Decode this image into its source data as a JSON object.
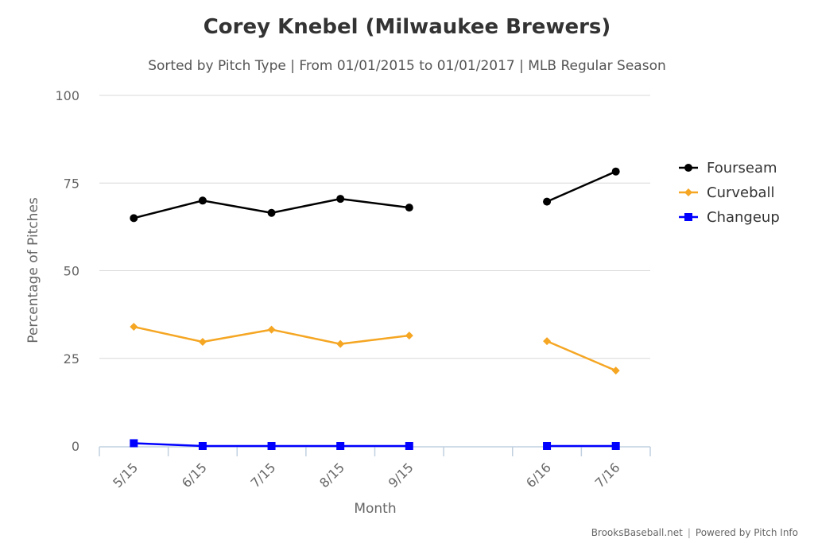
{
  "chart_data": {
    "type": "line",
    "title": "Corey Knebel (Milwaukee Brewers)",
    "subtitle": "Sorted by Pitch Type | From 01/01/2015 to 01/01/2017 | MLB Regular Season",
    "xlabel": "Month",
    "ylabel": "Percentage of Pitches",
    "categories": [
      "5/15",
      "6/15",
      "7/15",
      "8/15",
      "9/15",
      "",
      "6/16",
      "7/16"
    ],
    "ylim": [
      0,
      100
    ],
    "yticks": [
      0,
      25,
      50,
      75,
      100
    ],
    "grid": true,
    "legend_position": "right",
    "series": [
      {
        "name": "Fourseam",
        "color": "#000000",
        "marker": "circle",
        "values": [
          65,
          70,
          66.5,
          70.5,
          68,
          null,
          69.7,
          78.3
        ]
      },
      {
        "name": "Curveball",
        "color": "#f5a623",
        "marker": "diamond",
        "values": [
          34,
          29.7,
          33.2,
          29.1,
          31.5,
          null,
          29.9,
          21.5
        ]
      },
      {
        "name": "Changeup",
        "color": "#0000ff",
        "marker": "square",
        "values": [
          0.8,
          0,
          0,
          0,
          0,
          null,
          0,
          0
        ]
      }
    ]
  },
  "credit": {
    "source": "BrooksBaseball.net",
    "separator": "|",
    "powered": "Powered by Pitch Info"
  }
}
